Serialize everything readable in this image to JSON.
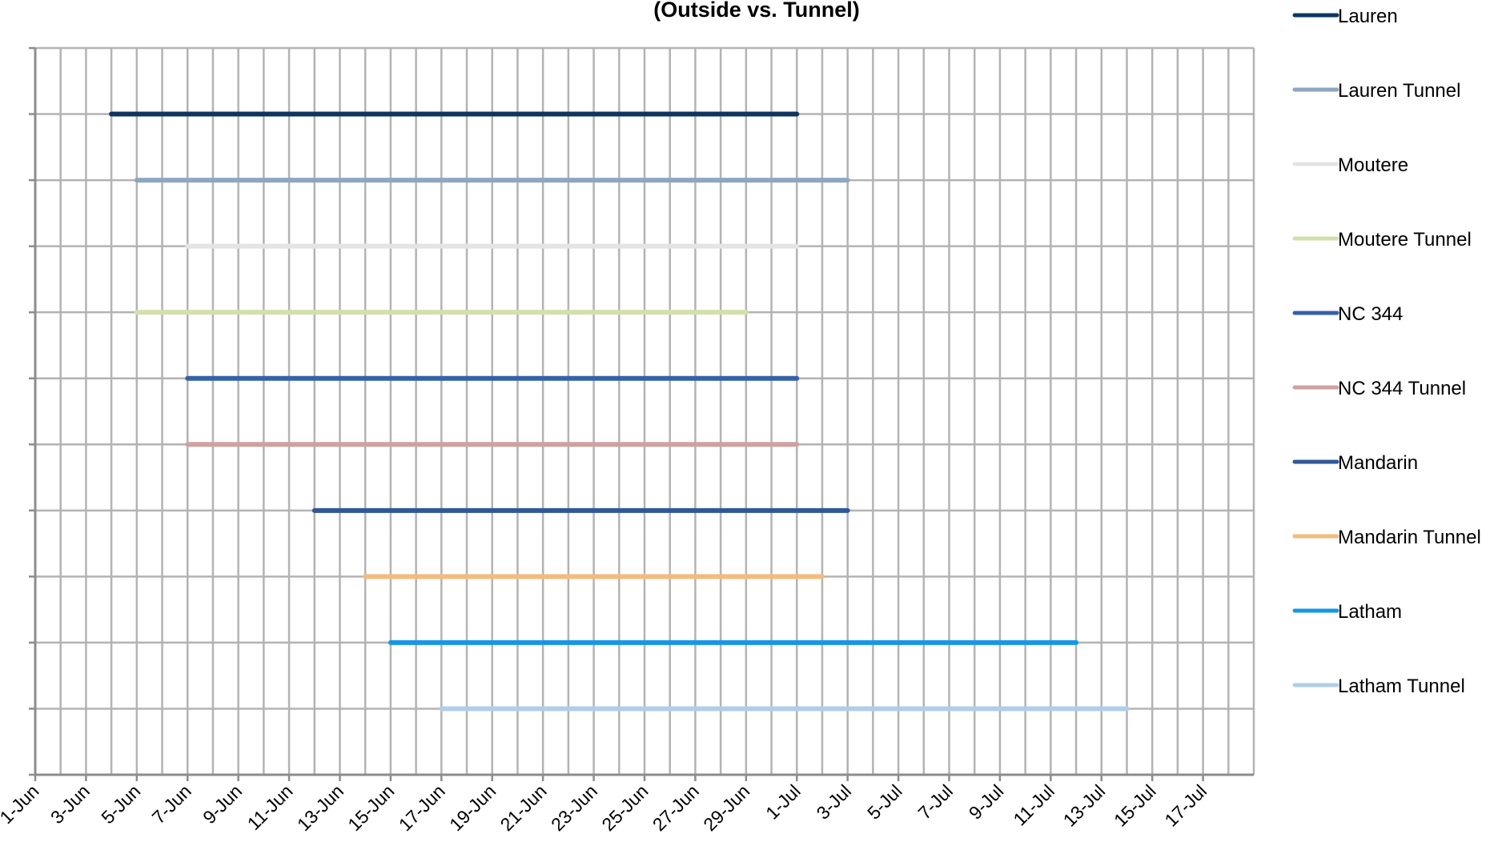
{
  "chart_data": {
    "type": "line",
    "title": "(Outside vs. Tunnel)",
    "xlabel": "",
    "ylabel": "",
    "x_axis": {
      "min": "1-Jun",
      "max": "19-Jul",
      "tick_labels": [
        "1-Jun",
        "3-Jun",
        "5-Jun",
        "7-Jun",
        "9-Jun",
        "11-Jun",
        "13-Jun",
        "15-Jun",
        "17-Jun",
        "19-Jun",
        "21-Jun",
        "23-Jun",
        "25-Jun",
        "27-Jun",
        "29-Jun",
        "1-Jul",
        "3-Jul",
        "5-Jul",
        "7-Jul",
        "9-Jul",
        "11-Jul",
        "13-Jul",
        "15-Jul",
        "17-Jul"
      ]
    },
    "grid": true,
    "legend_position": "right",
    "series": [
      {
        "name": "Lauren",
        "start": "4-Jun",
        "end": "1-Jul",
        "color": "#0e3560"
      },
      {
        "name": "Lauren Tunnel",
        "start": "5-Jun",
        "end": "3-Jul",
        "color": "#8ea6c0"
      },
      {
        "name": "Moutere",
        "start": "7-Jun",
        "end": "1-Jul",
        "color": "#e4e4e4"
      },
      {
        "name": "Moutere Tunnel",
        "start": "5-Jun",
        "end": "29-Jun",
        "color": "#d2e0ac"
      },
      {
        "name": "NC 344",
        "start": "7-Jun",
        "end": "1-Jul",
        "color": "#3661a8"
      },
      {
        "name": "NC 344 Tunnel",
        "start": "7-Jun",
        "end": "1-Jul",
        "color": "#cfa1a0"
      },
      {
        "name": "Mandarin",
        "start": "12-Jun",
        "end": "3-Jul",
        "color": "#2f5897"
      },
      {
        "name": "Mandarin Tunnel",
        "start": "14-Jun",
        "end": "2-Jul",
        "color": "#f2bc7d"
      },
      {
        "name": "Latham",
        "start": "15-Jun",
        "end": "12-Jul",
        "color": "#1597e8"
      },
      {
        "name": "Latham Tunnel",
        "start": "17-Jun",
        "end": "14-Jul",
        "color": "#b0cde9"
      }
    ]
  }
}
